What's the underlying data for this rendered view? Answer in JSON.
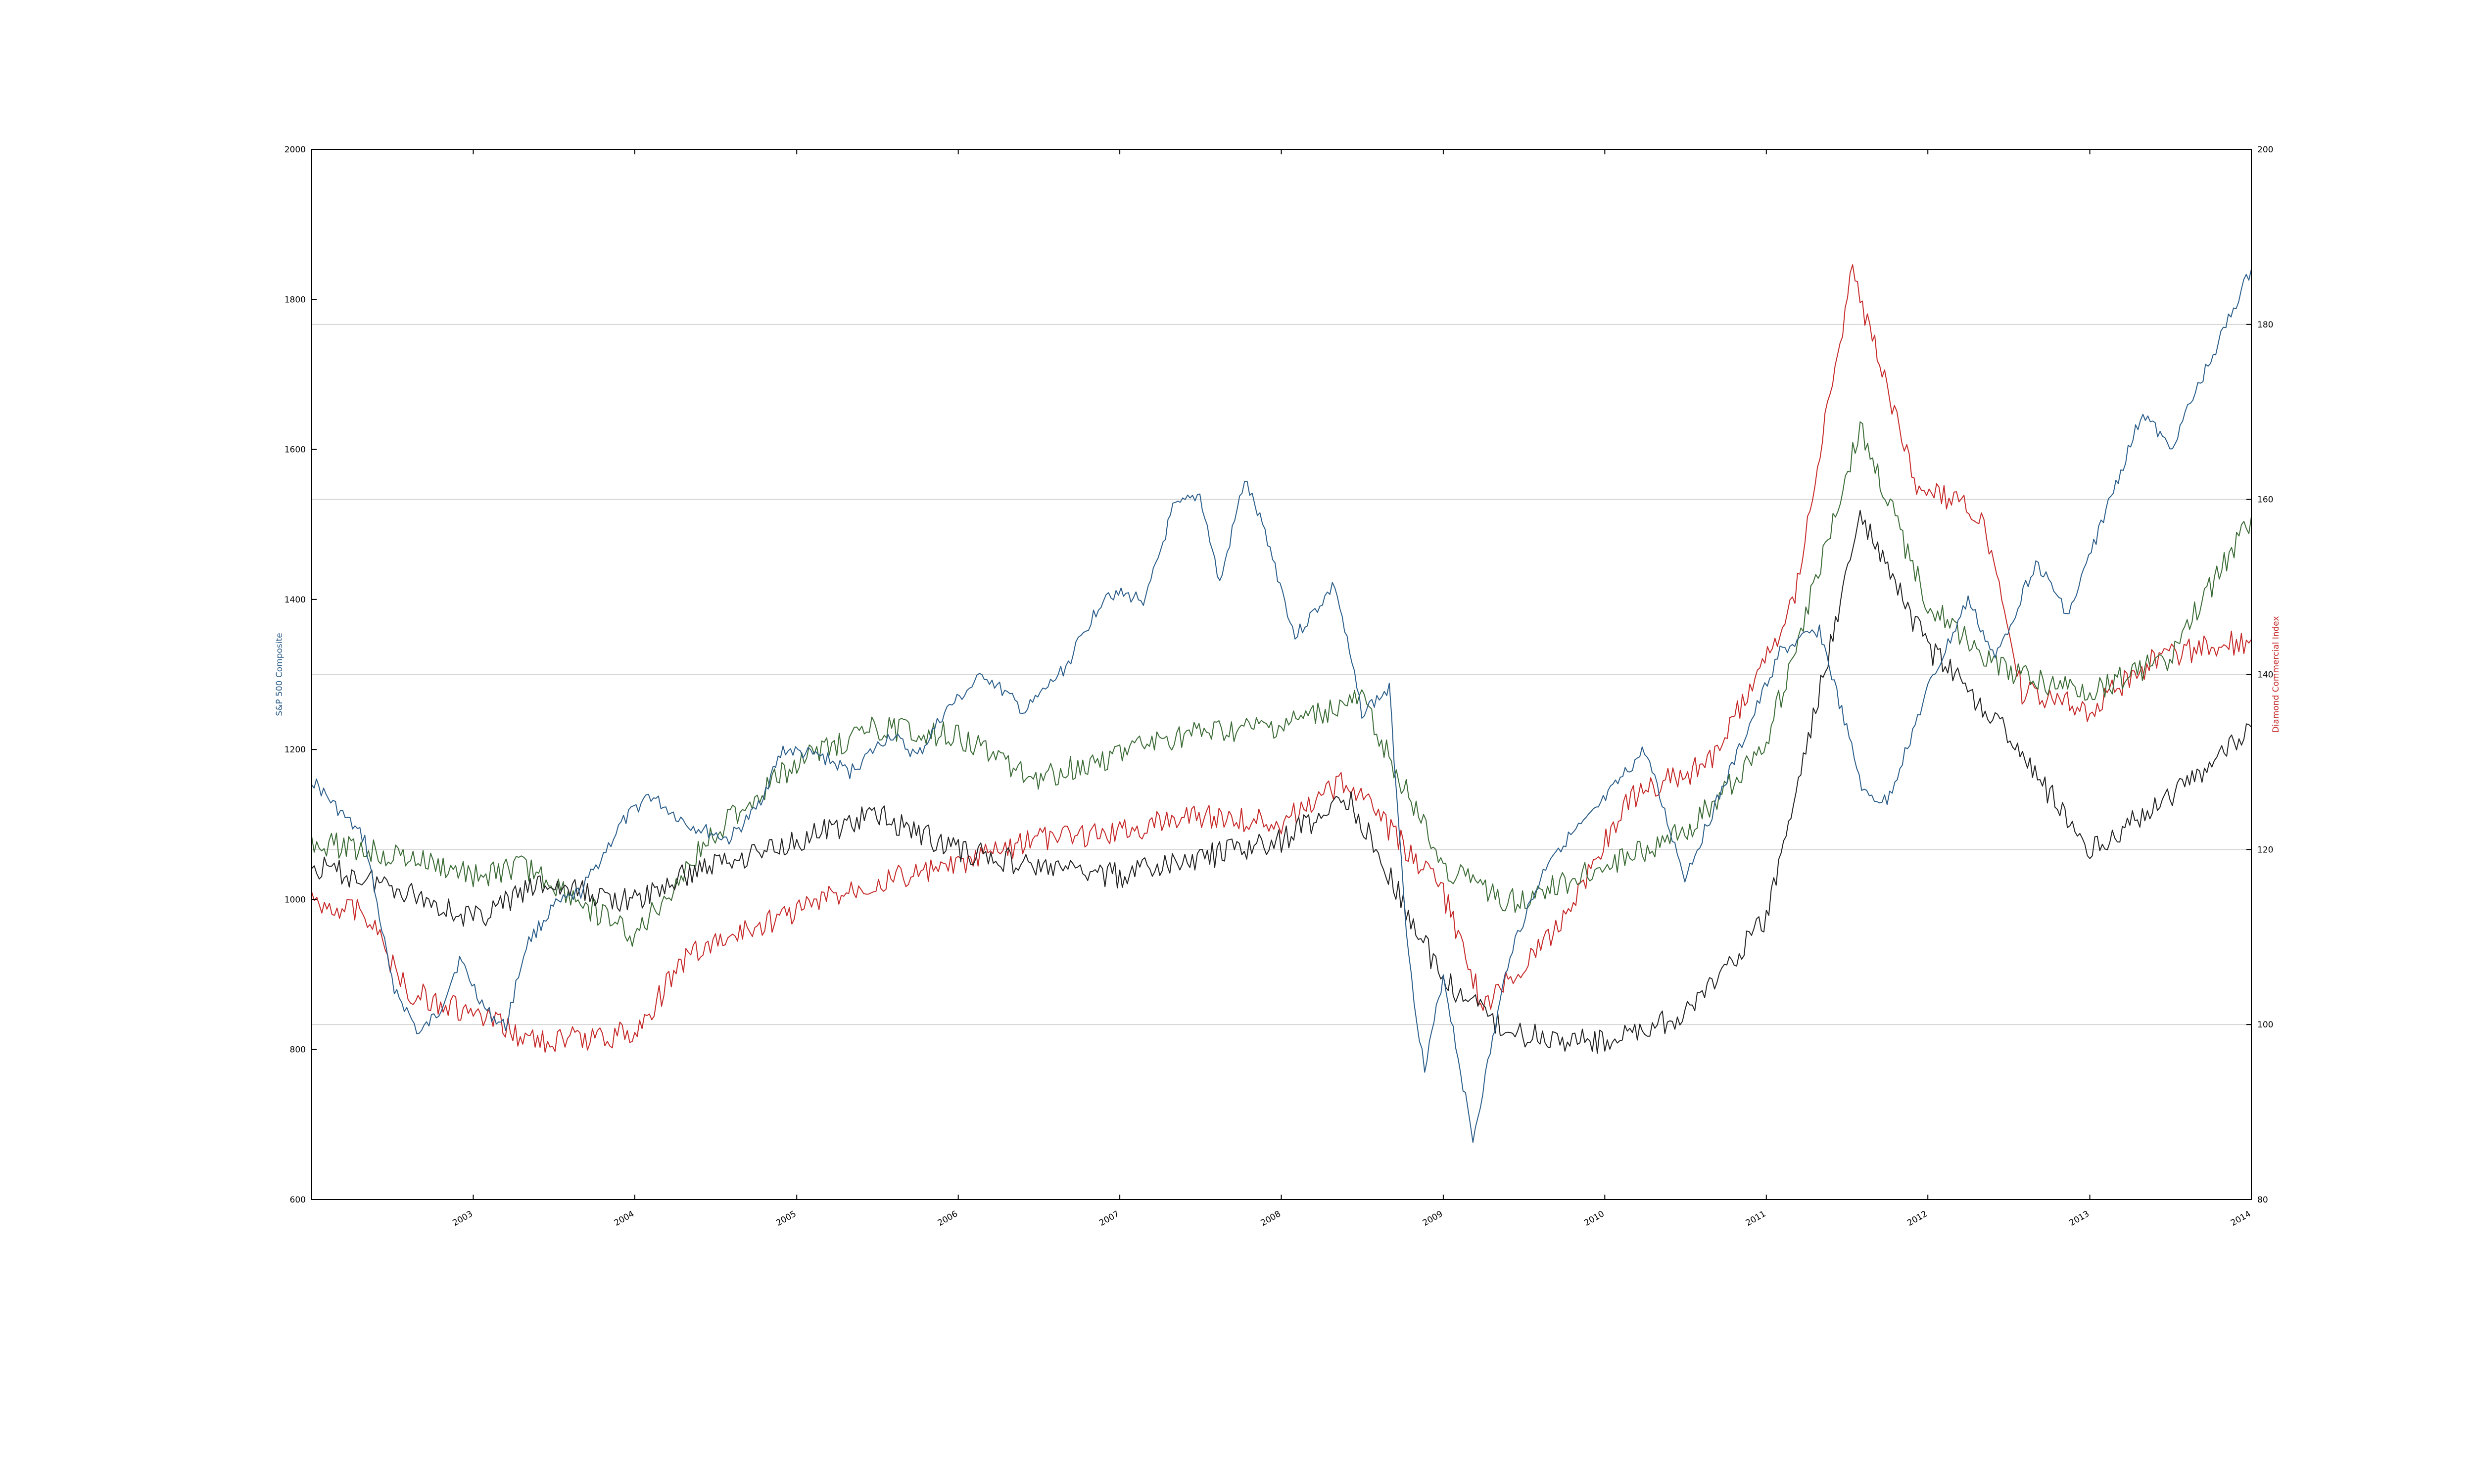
{
  "chart_data": {
    "type": "line",
    "xlabel": "",
    "ylabel_left": "S&P 500 Composite",
    "ylabel_right": "Diamond Commercial Index",
    "x_range": [
      "2002-01-01",
      "2014-01-01"
    ],
    "x_ticks": [
      "2003",
      "2004",
      "2005",
      "2006",
      "2007",
      "2008",
      "2009",
      "2010",
      "2011",
      "2012",
      "2013",
      "2014"
    ],
    "ylim_left": [
      600,
      2000
    ],
    "ylim_right": [
      80,
      200
    ],
    "y_ticks_left": [
      "600",
      "800",
      "1000",
      "1200",
      "1400",
      "1600",
      "1800",
      "2000"
    ],
    "y_ticks_right": [
      "80",
      "100",
      "120",
      "140",
      "160",
      "180",
      "200"
    ],
    "grid": "horizontal gridlines at right-axis ticks",
    "colors": {
      "sp500": "#2a5d8a",
      "series_red": "#c62828",
      "series_green": "#3a6b35",
      "series_black": "#222222",
      "grid": "#d6d6d6"
    },
    "series": [
      {
        "axis": "left",
        "color_key": "sp500",
        "points": [
          [
            "2002-01-01",
            1160
          ],
          [
            "2002-03-01",
            1120
          ],
          [
            "2002-05-01",
            1080
          ],
          [
            "2002-07-01",
            890
          ],
          [
            "2002-09-01",
            820
          ],
          [
            "2002-10-15",
            850
          ],
          [
            "2002-12-01",
            920
          ],
          [
            "2003-02-01",
            850
          ],
          [
            "2003-03-15",
            830
          ],
          [
            "2003-05-01",
            940
          ],
          [
            "2003-07-01",
            990
          ],
          [
            "2003-09-01",
            1010
          ],
          [
            "2003-12-01",
            1100
          ],
          [
            "2004-02-01",
            1140
          ],
          [
            "2004-05-01",
            1100
          ],
          [
            "2004-08-01",
            1080
          ],
          [
            "2004-10-01",
            1120
          ],
          [
            "2004-12-01",
            1200
          ],
          [
            "2005-03-01",
            1190
          ],
          [
            "2005-05-01",
            1170
          ],
          [
            "2005-08-01",
            1220
          ],
          [
            "2005-10-01",
            1190
          ],
          [
            "2005-12-01",
            1250
          ],
          [
            "2006-03-01",
            1300
          ],
          [
            "2006-06-01",
            1250
          ],
          [
            "2006-09-01",
            1310
          ],
          [
            "2006-12-01",
            1410
          ],
          [
            "2007-03-01",
            1400
          ],
          [
            "2007-05-01",
            1520
          ],
          [
            "2007-07-01",
            1540
          ],
          [
            "2007-08-15",
            1420
          ],
          [
            "2007-10-10",
            1560
          ],
          [
            "2007-12-01",
            1480
          ],
          [
            "2008-02-01",
            1350
          ],
          [
            "2008-05-01",
            1420
          ],
          [
            "2008-07-01",
            1250
          ],
          [
            "2008-09-01",
            1280
          ],
          [
            "2008-10-15",
            920
          ],
          [
            "2008-11-20",
            770
          ],
          [
            "2009-01-01",
            900
          ],
          [
            "2009-03-09",
            680
          ],
          [
            "2009-06-01",
            930
          ],
          [
            "2009-09-01",
            1060
          ],
          [
            "2009-12-01",
            1110
          ],
          [
            "2010-04-01",
            1200
          ],
          [
            "2010-07-01",
            1030
          ],
          [
            "2010-11-01",
            1200
          ],
          [
            "2011-02-01",
            1330
          ],
          [
            "2011-05-01",
            1360
          ],
          [
            "2011-08-10",
            1140
          ],
          [
            "2011-10-01",
            1130
          ],
          [
            "2012-01-01",
            1280
          ],
          [
            "2012-04-01",
            1400
          ],
          [
            "2012-06-01",
            1320
          ],
          [
            "2012-09-01",
            1450
          ],
          [
            "2012-11-15",
            1380
          ],
          [
            "2013-02-01",
            1510
          ],
          [
            "2013-05-01",
            1650
          ],
          [
            "2013-07-01",
            1600
          ],
          [
            "2013-10-01",
            1720
          ],
          [
            "2014-01-01",
            1840
          ]
        ]
      },
      {
        "axis": "right",
        "color_key": "series_red",
        "points": [
          [
            "2002-01-01",
            114
          ],
          [
            "2002-05-01",
            113
          ],
          [
            "2002-08-01",
            104
          ],
          [
            "2003-01-01",
            101
          ],
          [
            "2003-06-01",
            98
          ],
          [
            "2004-01-01",
            99
          ],
          [
            "2004-05-01",
            108
          ],
          [
            "2005-01-01",
            113
          ],
          [
            "2005-06-01",
            116
          ],
          [
            "2006-01-01",
            118
          ],
          [
            "2006-06-01",
            121
          ],
          [
            "2007-01-01",
            122
          ],
          [
            "2007-06-01",
            124
          ],
          [
            "2008-01-01",
            123
          ],
          [
            "2008-06-01",
            128
          ],
          [
            "2009-01-01",
            115
          ],
          [
            "2009-04-01",
            102
          ],
          [
            "2009-09-01",
            110
          ],
          [
            "2010-03-01",
            126
          ],
          [
            "2010-09-01",
            130
          ],
          [
            "2011-03-01",
            148
          ],
          [
            "2011-07-15",
            186
          ],
          [
            "2011-12-01",
            162
          ],
          [
            "2012-05-01",
            158
          ],
          [
            "2012-08-01",
            138
          ],
          [
            "2013-01-01",
            136
          ],
          [
            "2013-06-01",
            142
          ],
          [
            "2014-01-01",
            144
          ]
        ]
      },
      {
        "axis": "right",
        "color_key": "series_green",
        "points": [
          [
            "2002-01-01",
            121
          ],
          [
            "2002-08-01",
            119
          ],
          [
            "2003-01-01",
            117
          ],
          [
            "2003-05-01",
            118
          ],
          [
            "2004-01-01",
            110
          ],
          [
            "2004-07-01",
            122
          ],
          [
            "2005-01-01",
            130
          ],
          [
            "2005-07-01",
            134
          ],
          [
            "2006-01-01",
            133
          ],
          [
            "2006-07-01",
            128
          ],
          [
            "2007-01-01",
            131
          ],
          [
            "2007-06-01",
            133
          ],
          [
            "2008-01-01",
            134
          ],
          [
            "2008-07-01",
            137
          ],
          [
            "2009-01-01",
            118
          ],
          [
            "2009-06-01",
            114
          ],
          [
            "2010-01-01",
            118
          ],
          [
            "2010-07-01",
            122
          ],
          [
            "2011-01-01",
            132
          ],
          [
            "2011-08-01",
            168
          ],
          [
            "2012-01-01",
            148
          ],
          [
            "2012-07-01",
            140
          ],
          [
            "2013-01-01",
            138
          ],
          [
            "2013-07-01",
            142
          ],
          [
            "2014-01-01",
            158
          ]
        ]
      },
      {
        "axis": "right",
        "color_key": "series_black",
        "points": [
          [
            "2002-01-01",
            118
          ],
          [
            "2002-07-01",
            116
          ],
          [
            "2003-01-01",
            112
          ],
          [
            "2003-06-01",
            116
          ],
          [
            "2004-01-01",
            114
          ],
          [
            "2004-06-01",
            118
          ],
          [
            "2005-01-01",
            121
          ],
          [
            "2005-07-01",
            124
          ],
          [
            "2006-01-01",
            120
          ],
          [
            "2006-07-01",
            118
          ],
          [
            "2007-01-01",
            117
          ],
          [
            "2007-07-01",
            119
          ],
          [
            "2008-01-01",
            121
          ],
          [
            "2008-06-01",
            126
          ],
          [
            "2009-01-01",
            105
          ],
          [
            "2009-06-01",
            99
          ],
          [
            "2010-01-01",
            98
          ],
          [
            "2010-07-01",
            101
          ],
          [
            "2011-01-01",
            112
          ],
          [
            "2011-08-01",
            158
          ],
          [
            "2012-01-01",
            143
          ],
          [
            "2012-06-01",
            135
          ],
          [
            "2013-01-01",
            120
          ],
          [
            "2013-07-01",
            126
          ],
          [
            "2014-01-01",
            134
          ]
        ]
      }
    ]
  }
}
